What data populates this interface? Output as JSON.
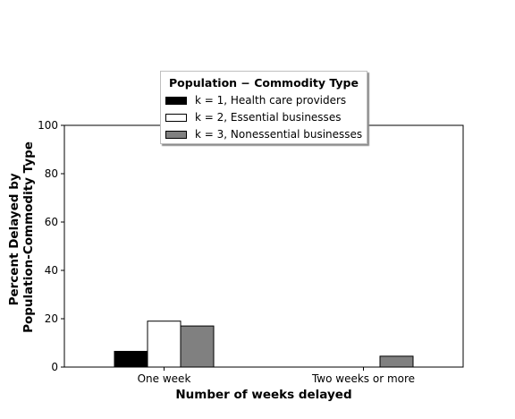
{
  "chart_data": {
    "type": "bar",
    "categories": [
      "One week",
      "Two weeks or more"
    ],
    "series": [
      {
        "name": "k = 1, Health care providers",
        "values": [
          6.5,
          0
        ],
        "color": "#000000"
      },
      {
        "name": "k = 2, Essential businesses",
        "values": [
          19,
          0
        ],
        "color": "#ffffff"
      },
      {
        "name": "k = 3, Nonessential businesses",
        "values": [
          17,
          4.5
        ],
        "color": "#808080"
      }
    ],
    "xlabel": "Number of weeks delayed",
    "ylabel_lines": [
      "Percent Delayed by",
      "Population-Commodity Type"
    ],
    "ylim": [
      0,
      100
    ],
    "yticks": [
      0,
      20,
      40,
      60,
      80,
      100
    ],
    "legend": {
      "title": "Population − Commodity Type",
      "placement": "top-center"
    },
    "grid": false
  }
}
